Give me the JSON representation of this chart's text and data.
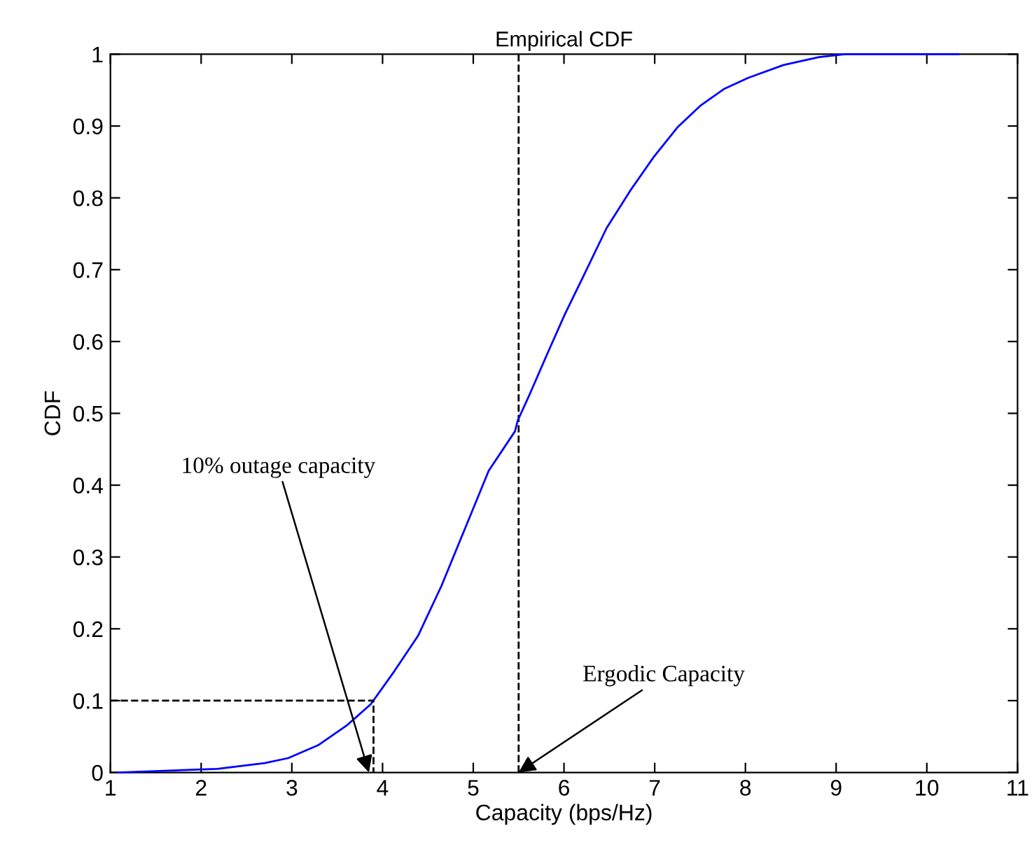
{
  "chart_data": {
    "type": "line",
    "title": "Empirical CDF",
    "xlabel": "Capacity (bps/Hz)",
    "ylabel": "CDF",
    "series": [
      {
        "color": "#0000ff",
        "line_style": "solid",
        "x": [
          1.08,
          2.18,
          2.7,
          2.96,
          3.29,
          3.61,
          3.87,
          4.13,
          4.39,
          4.65,
          4.91,
          5.17,
          5.46,
          5.49,
          5.62,
          5.82,
          6.01,
          6.21,
          6.47,
          6.73,
          6.99,
          7.25,
          7.51,
          7.77,
          8.03,
          8.42,
          8.81,
          9.1,
          10.35
        ],
        "values": [
          0,
          0.005,
          0.013,
          0.02,
          0.038,
          0.066,
          0.095,
          0.141,
          0.19,
          0.26,
          0.34,
          0.42,
          0.475,
          0.49,
          0.526,
          0.584,
          0.638,
          0.69,
          0.758,
          0.81,
          0.857,
          0.898,
          0.929,
          0.952,
          0.967,
          0.985,
          0.996,
          1.0,
          1.0
        ]
      },
      {
        "color": "#000000",
        "line_style": "dashed",
        "x": [
          1,
          3.9,
          3.9
        ],
        "values": [
          0.1,
          0.1,
          0
        ]
      }
    ],
    "ref_lines": [
      {
        "axis": "x",
        "value": 5.5,
        "color": "#000000",
        "line_style": "dashed"
      }
    ],
    "annotations": [
      {
        "text": "10% outage capacity",
        "x": 3.85,
        "y": 0
      },
      {
        "text": "Ergodic Capacity",
        "x": 5.5,
        "y": 0
      }
    ],
    "xlim": [
      1,
      11
    ],
    "xticks": [
      1,
      2,
      3,
      4,
      5,
      6,
      7,
      8,
      9,
      10,
      11
    ],
    "ylim": [
      0,
      1
    ],
    "yticks": [
      0,
      0.1,
      0.2,
      0.3,
      0.4,
      0.5,
      0.6,
      0.7,
      0.8,
      0.9,
      1
    ],
    "grid": false,
    "legend": false,
    "marker": "none"
  }
}
